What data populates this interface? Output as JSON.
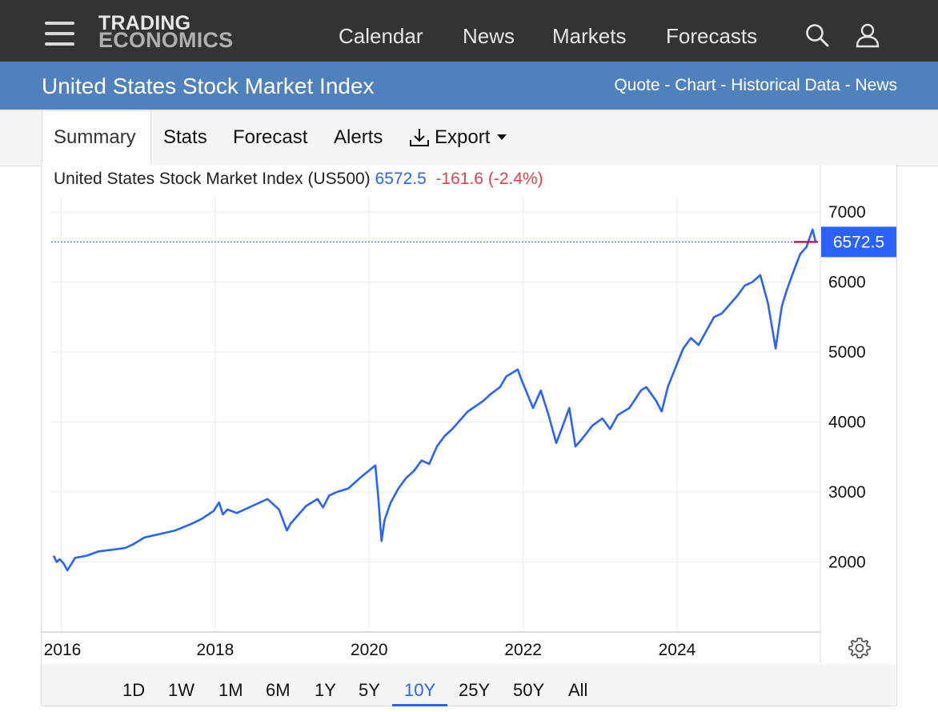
{
  "header": {
    "logo_line1": "TRADING",
    "logo_line2": "ECONOMICS",
    "nav": [
      "Calendar",
      "News",
      "Markets",
      "Forecasts"
    ],
    "icons": [
      "menu-icon",
      "search-icon",
      "user-icon"
    ]
  },
  "title_bar": {
    "title": "United States Stock Market Index",
    "links": [
      "Quote",
      "Chart",
      "Historical Data",
      "News"
    ],
    "separator": " - "
  },
  "tabs": [
    "Summary",
    "Stats",
    "Forecast",
    "Alerts",
    "Export"
  ],
  "active_tab": "Summary",
  "quote": {
    "name": "United States Stock Market Index (US500)",
    "price": "6572.5",
    "change": "-161.6",
    "change_pct": "(-2.4%)",
    "price_label": "6572.5"
  },
  "colors": {
    "line": "#2962ff",
    "negative": "#e0404a",
    "topbar": "#333333",
    "bluebar": "#4f81bd"
  },
  "ranges": [
    "1D",
    "1W",
    "1M",
    "6M",
    "1Y",
    "5Y",
    "10Y",
    "25Y",
    "50Y",
    "All"
  ],
  "active_range": "10Y",
  "chart_data": {
    "type": "line",
    "y_ticks": [
      "7000",
      "6000",
      "5000",
      "4000",
      "3000",
      "2000"
    ],
    "x_ticks": [
      "2016",
      "2018",
      "2020",
      "2022",
      "2024"
    ],
    "ylim": [
      1000,
      7300
    ],
    "xlim": [
      2015.9,
      2025.85
    ],
    "grid": true,
    "last_value": 6572.5,
    "series": [
      {
        "x": [
          2015.92,
          2015.96,
          2016.0,
          2016.05,
          2016.1,
          2016.2,
          2016.35,
          2016.5,
          2016.65,
          2016.85,
          2016.95,
          2017.1,
          2017.3,
          2017.5,
          2017.7,
          2017.85,
          2018.0,
          2018.07,
          2018.12,
          2018.18,
          2018.3,
          2018.5,
          2018.7,
          2018.85,
          2018.95,
          2019.0,
          2019.2,
          2019.35,
          2019.42,
          2019.5,
          2019.6,
          2019.75,
          2019.9,
          2020.1,
          2020.14,
          2020.18,
          2020.22,
          2020.3,
          2020.4,
          2020.5,
          2020.6,
          2020.7,
          2020.8,
          2020.9,
          2021.0,
          2021.1,
          2021.3,
          2021.5,
          2021.6,
          2021.72,
          2021.8,
          2021.95,
          2022.0,
          2022.15,
          2022.25,
          2022.35,
          2022.45,
          2022.52,
          2022.62,
          2022.7,
          2022.78,
          2022.92,
          2023.05,
          2023.15,
          2023.25,
          2023.4,
          2023.55,
          2023.62,
          2023.75,
          2023.82,
          2023.9,
          2024.0,
          2024.1,
          2024.2,
          2024.3,
          2024.4,
          2024.5,
          2024.6,
          2024.68,
          2024.8,
          2024.9,
          2025.0,
          2025.1,
          2025.2,
          2025.3,
          2025.38,
          2025.45,
          2025.55,
          2025.62,
          2025.7,
          2025.78,
          2025.82
        ],
        "y": [
          2090,
          2000,
          2040,
          1980,
          1880,
          2060,
          2090,
          2150,
          2170,
          2200,
          2250,
          2350,
          2400,
          2450,
          2540,
          2620,
          2730,
          2850,
          2680,
          2750,
          2700,
          2800,
          2900,
          2750,
          2450,
          2550,
          2800,
          2900,
          2780,
          2950,
          3000,
          3050,
          3200,
          3380,
          2900,
          2300,
          2600,
          2850,
          3050,
          3200,
          3300,
          3450,
          3400,
          3650,
          3800,
          3900,
          4150,
          4300,
          4400,
          4500,
          4650,
          4750,
          4600,
          4200,
          4450,
          4100,
          3700,
          3900,
          4200,
          3650,
          3750,
          3950,
          4050,
          3900,
          4100,
          4200,
          4450,
          4500,
          4300,
          4150,
          4500,
          4780,
          5050,
          5200,
          5100,
          5300,
          5500,
          5550,
          5650,
          5800,
          5950,
          6000,
          6100,
          5700,
          5050,
          5650,
          5900,
          6200,
          6400,
          6500,
          6750,
          6572.5
        ]
      }
    ]
  }
}
